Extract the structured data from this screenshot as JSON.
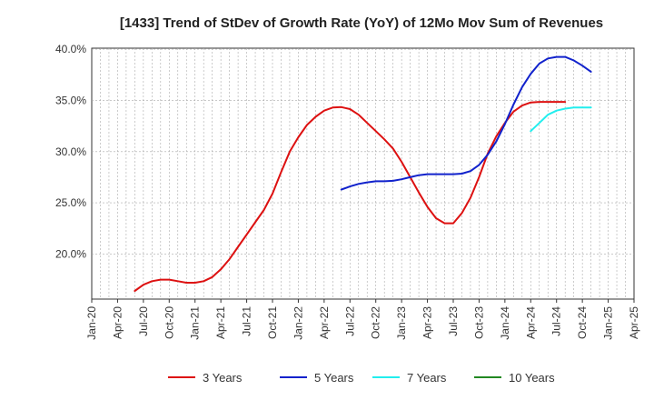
{
  "chart_data": {
    "type": "line",
    "title": "[1433]  Trend of StDev of Growth Rate (YoY) of 12Mo Mov Sum of Revenues",
    "xlabel": "",
    "ylabel": "",
    "x_ticks": [
      "Jan-20",
      "Apr-20",
      "Jul-20",
      "Oct-20",
      "Jan-21",
      "Apr-21",
      "Jul-21",
      "Oct-21",
      "Jan-22",
      "Apr-22",
      "Jul-22",
      "Oct-22",
      "Jan-23",
      "Apr-23",
      "Jul-23",
      "Oct-23",
      "Jan-24",
      "Apr-24",
      "Jul-24",
      "Oct-24",
      "Jan-25",
      "Apr-25"
    ],
    "x_range_months": [
      0,
      63
    ],
    "y_ticks": [
      {
        "value": 20,
        "label": "20.0%"
      },
      {
        "value": 25,
        "label": "25.0%"
      },
      {
        "value": 30,
        "label": "30.0%"
      },
      {
        "value": 35,
        "label": "35.0%"
      },
      {
        "value": 40,
        "label": "40.0%"
      }
    ],
    "ylim": [
      15.6,
      40.1
    ],
    "grid": true,
    "legend_position": "bottom",
    "series": [
      {
        "name": "3 Years",
        "color": "#dd1111",
        "points": [
          [
            5,
            16.4
          ],
          [
            6,
            17.0
          ],
          [
            7,
            17.35
          ],
          [
            8,
            17.5
          ],
          [
            9,
            17.5
          ],
          [
            10,
            17.35
          ],
          [
            11,
            17.2
          ],
          [
            12,
            17.2
          ],
          [
            13,
            17.35
          ],
          [
            14,
            17.75
          ],
          [
            15,
            18.5
          ],
          [
            16,
            19.5
          ],
          [
            17,
            20.7
          ],
          [
            18,
            21.9
          ],
          [
            19,
            23.1
          ],
          [
            20,
            24.3
          ],
          [
            21,
            25.9
          ],
          [
            22,
            28.0
          ],
          [
            23,
            30.0
          ],
          [
            24,
            31.4
          ],
          [
            25,
            32.6
          ],
          [
            26,
            33.4
          ],
          [
            27,
            34.0
          ],
          [
            28,
            34.3
          ],
          [
            29,
            34.35
          ],
          [
            30,
            34.15
          ],
          [
            31,
            33.6
          ],
          [
            32,
            32.8
          ],
          [
            33,
            32.0
          ],
          [
            34,
            31.2
          ],
          [
            35,
            30.3
          ],
          [
            36,
            29.0
          ],
          [
            37,
            27.5
          ],
          [
            38,
            26.0
          ],
          [
            39,
            24.6
          ],
          [
            40,
            23.5
          ],
          [
            41,
            23.0
          ],
          [
            42,
            23.0
          ],
          [
            43,
            24.0
          ],
          [
            44,
            25.5
          ],
          [
            45,
            27.5
          ],
          [
            46,
            29.8
          ],
          [
            47,
            31.5
          ],
          [
            48,
            32.8
          ],
          [
            49,
            33.9
          ],
          [
            50,
            34.5
          ],
          [
            51,
            34.8
          ],
          [
            52,
            34.85
          ],
          [
            53,
            34.85
          ],
          [
            54,
            34.85
          ],
          [
            55,
            34.85
          ]
        ]
      },
      {
        "name": "5 Years",
        "color": "#1122cc",
        "points": [
          [
            29,
            26.3
          ],
          [
            30,
            26.6
          ],
          [
            31,
            26.85
          ],
          [
            32,
            27.0
          ],
          [
            33,
            27.1
          ],
          [
            34,
            27.1
          ],
          [
            35,
            27.15
          ],
          [
            36,
            27.3
          ],
          [
            37,
            27.5
          ],
          [
            38,
            27.7
          ],
          [
            39,
            27.8
          ],
          [
            40,
            27.8
          ],
          [
            41,
            27.8
          ],
          [
            42,
            27.8
          ],
          [
            43,
            27.85
          ],
          [
            44,
            28.1
          ],
          [
            45,
            28.7
          ],
          [
            46,
            29.7
          ],
          [
            47,
            31.0
          ],
          [
            48,
            32.7
          ],
          [
            49,
            34.6
          ],
          [
            50,
            36.3
          ],
          [
            51,
            37.6
          ],
          [
            52,
            38.6
          ],
          [
            53,
            39.1
          ],
          [
            54,
            39.25
          ],
          [
            55,
            39.25
          ],
          [
            56,
            38.9
          ],
          [
            57,
            38.4
          ],
          [
            58,
            37.8
          ]
        ]
      },
      {
        "name": "7 Years",
        "color": "#22eeee",
        "points": [
          [
            51,
            32.0
          ],
          [
            52,
            32.8
          ],
          [
            53,
            33.6
          ],
          [
            54,
            34.0
          ],
          [
            55,
            34.2
          ],
          [
            56,
            34.3
          ],
          [
            57,
            34.3
          ],
          [
            58,
            34.3
          ]
        ]
      },
      {
        "name": "10 Years",
        "color": "#228822",
        "points": []
      }
    ]
  }
}
